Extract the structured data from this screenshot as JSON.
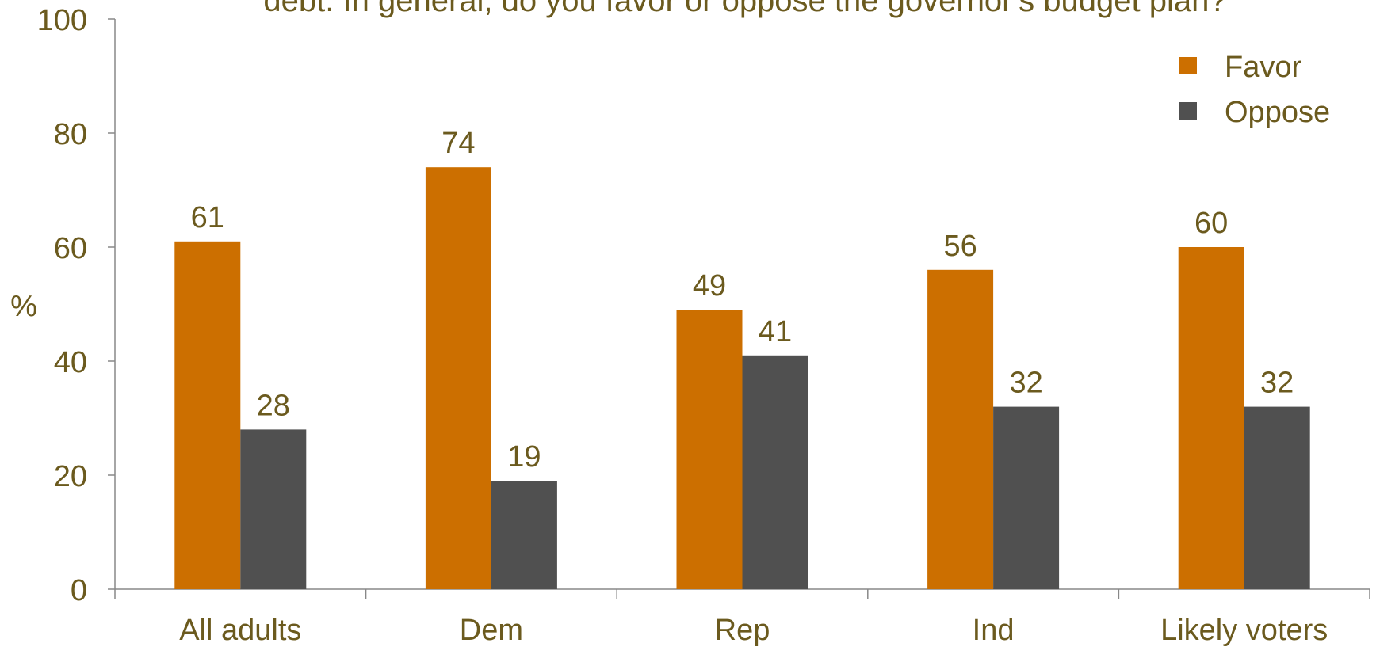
{
  "chart_data": {
    "type": "bar",
    "title": "debt. In general, do you favor or oppose the governor's budget plan?",
    "xlabel": "",
    "ylabel": "%",
    "ylim": [
      0,
      100
    ],
    "yticks": [
      "0",
      "20",
      "40",
      "60",
      "80",
      "100"
    ],
    "categories": [
      "All adults",
      "Dem",
      "Rep",
      "Ind",
      "Likely voters"
    ],
    "series": [
      {
        "name": "Favor",
        "values": [
          61,
          74,
          49,
          56,
          60
        ]
      },
      {
        "name": "Oppose",
        "values": [
          28,
          19,
          41,
          32,
          32
        ]
      }
    ],
    "legend_position": "top-right",
    "grid": false
  },
  "colors": {
    "favor": "#cc6f00",
    "oppose": "#505050",
    "text": "#6b5a1e",
    "axis": "#888888"
  }
}
